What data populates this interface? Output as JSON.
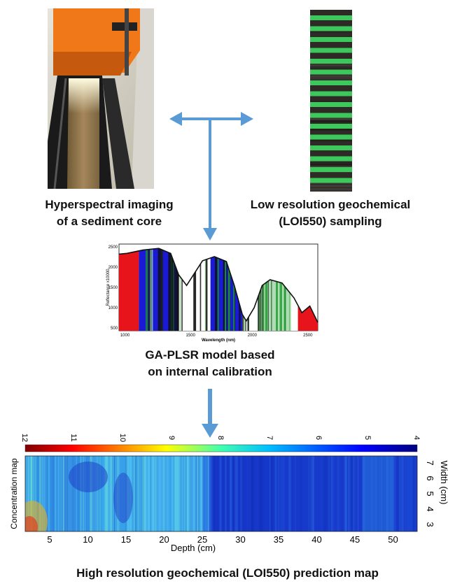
{
  "captions": {
    "hyperspectral_line1": "Hyperspectral imaging",
    "hyperspectral_line2": "of a sediment core",
    "lowres_line1": "Low resolution geochemical",
    "lowres_line2": "(LOI550) sampling",
    "model_line1": "GA-PLSR model based",
    "model_line2": "on internal calibration",
    "prediction": "High resolution geochemical (LOI550) prediction map"
  },
  "spectrum_chart": {
    "ylabel": "Reflectance x10000",
    "xlabel": "Wavelength (nm)",
    "y_ticks": [
      "2500",
      "2000",
      "1500",
      "1000",
      "500"
    ],
    "x_ticks": [
      "1000",
      "1500",
      "2000",
      "2500"
    ],
    "colors": {
      "red": "#e8141c",
      "blue": "#1a1ad6",
      "green": "#1a9a2a",
      "curve": "#111111"
    }
  },
  "prediction_map": {
    "ylabel": "Concentration map",
    "xlabel": "Depth (cm)",
    "right_label": "Width (cm)",
    "colorbar_ticks": [
      "12",
      "11",
      "10",
      "9",
      "8",
      "7",
      "6",
      "5",
      "4"
    ],
    "x_ticks": [
      "5",
      "10",
      "15",
      "20",
      "25",
      "30",
      "35",
      "40",
      "45",
      "50"
    ],
    "right_ticks": [
      "7",
      "6",
      "5",
      "4",
      "3"
    ]
  },
  "arrow_color": "#5b9bd5"
}
